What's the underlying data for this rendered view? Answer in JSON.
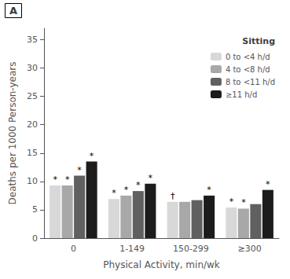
{
  "chart_data": {
    "type": "bar",
    "panel_label": "A",
    "xlabel": "Physical Activity, min/wk",
    "ylabel": "Deaths per 1000 Person-years",
    "categories": [
      "0",
      "1-149",
      "150-299",
      "≥300"
    ],
    "series": [
      {
        "name": "0 to <4 h/d",
        "color": "#d8d8d8",
        "values": [
          9.3,
          6.9,
          6.4,
          5.4
        ],
        "annotations": [
          "*",
          "*",
          "†",
          "*"
        ]
      },
      {
        "name": "4 to <8 h/d",
        "color": "#a8a8a8",
        "values": [
          9.3,
          7.5,
          6.4,
          5.2
        ],
        "annotations": [
          "*",
          "*",
          null,
          "*"
        ]
      },
      {
        "name": "8 to <11 h/d",
        "color": "#606060",
        "values": [
          11.0,
          8.3,
          6.7,
          6.0
        ],
        "annotations": [
          "*",
          "*",
          null,
          null
        ]
      },
      {
        "name": "≥11 h/d",
        "color": "#1c1c1c",
        "values": [
          13.5,
          9.6,
          7.5,
          8.5
        ],
        "annotations": [
          "*",
          "*",
          "*",
          "*"
        ]
      }
    ],
    "legend_title": "Sitting",
    "legend": "upper right",
    "ylim": [
      0,
      37
    ],
    "yticks": [
      0,
      5,
      10,
      15,
      20,
      25,
      30,
      35
    ],
    "grid": false
  }
}
